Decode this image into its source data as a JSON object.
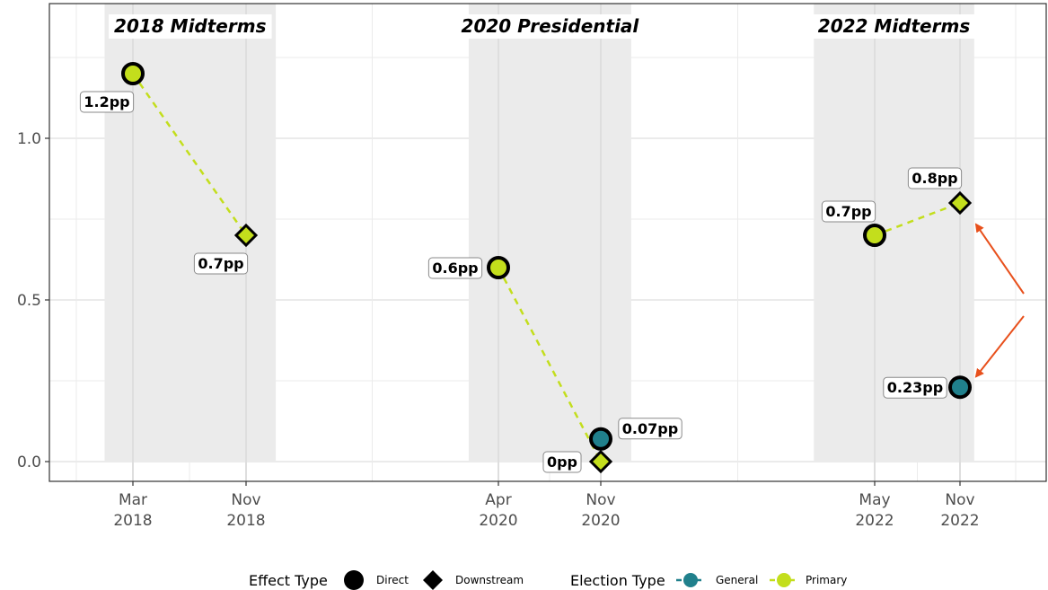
{
  "chart_data": {
    "type": "scatter",
    "title": "",
    "xlabel": "",
    "ylabel": "",
    "ylim": [
      -0.06,
      1.41
    ],
    "grid": true,
    "y_ticks": [
      {
        "value": 0.0,
        "label": "0.0"
      },
      {
        "value": 0.5,
        "label": "0.5"
      },
      {
        "value": 1.0,
        "label": "1.0"
      }
    ],
    "x_ticks": [
      {
        "date": "2018-03",
        "label_line1": "Mar",
        "label_line2": "2018"
      },
      {
        "date": "2018-11",
        "label_line1": "Nov",
        "label_line2": "2018"
      },
      {
        "date": "2020-04",
        "label_line1": "Apr",
        "label_line2": "2020"
      },
      {
        "date": "2020-11",
        "label_line1": "Nov",
        "label_line2": "2020"
      },
      {
        "date": "2022-05",
        "label_line1": "May",
        "label_line2": "2022"
      },
      {
        "date": "2022-11",
        "label_line1": "Nov",
        "label_line2": "2022"
      }
    ],
    "election_periods": [
      {
        "label": "2018 Midterms",
        "start": "2018-01",
        "end": "2019-01"
      },
      {
        "label": "2020 Presidential",
        "start": "2020-02",
        "end": "2021-01"
      },
      {
        "label": "2022 Midterms",
        "start": "2022-01",
        "end": "2022-12"
      }
    ],
    "points": [
      {
        "date": "2018-03",
        "value": 1.2,
        "effect_type": "Direct",
        "election_type": "Primary",
        "label": "1.2pp",
        "label_side": "below-left"
      },
      {
        "date": "2018-11",
        "value": 0.7,
        "effect_type": "Downstream",
        "election_type": "Primary",
        "label": "0.7pp",
        "label_side": "below-left"
      },
      {
        "date": "2020-04",
        "value": 0.6,
        "effect_type": "Direct",
        "election_type": "Primary",
        "label": "0.6pp",
        "label_side": "left"
      },
      {
        "date": "2020-11",
        "value": 0.07,
        "effect_type": "Direct",
        "election_type": "General",
        "label": "0.07pp",
        "label_side": "upper-right"
      },
      {
        "date": "2020-11",
        "value": 0.0,
        "effect_type": "Downstream",
        "election_type": "Primary",
        "label": "0pp",
        "label_side": "left"
      },
      {
        "date": "2022-05",
        "value": 0.7,
        "effect_type": "Direct",
        "election_type": "Primary",
        "label": "0.7pp",
        "label_side": "upper-left"
      },
      {
        "date": "2022-11",
        "value": 0.8,
        "effect_type": "Downstream",
        "election_type": "Primary",
        "label": "0.8pp",
        "label_side": "upper-left"
      },
      {
        "date": "2022-11",
        "value": 0.23,
        "effect_type": "Direct",
        "election_type": "General",
        "label": "0.23pp",
        "label_side": "left"
      }
    ],
    "lines": [
      {
        "election_type": "Primary",
        "from": {
          "date": "2018-03",
          "value": 1.2
        },
        "to": {
          "date": "2018-11",
          "value": 0.7
        }
      },
      {
        "election_type": "Primary",
        "from": {
          "date": "2020-04",
          "value": 0.6
        },
        "to": {
          "date": "2020-11",
          "value": 0.0
        }
      },
      {
        "election_type": "Primary",
        "from": {
          "date": "2022-05",
          "value": 0.7
        },
        "to": {
          "date": "2022-11",
          "value": 0.8
        }
      }
    ],
    "arrows_point_to": [
      {
        "date": "2022-11",
        "value": 0.8
      },
      {
        "date": "2022-11",
        "value": 0.23
      }
    ],
    "legend": {
      "placement": "bottom",
      "effect_type": {
        "title": "Effect Type",
        "items": [
          "Direct",
          "Downstream"
        ]
      },
      "election_type": {
        "title": "Election Type",
        "items": [
          "General",
          "Primary"
        ]
      }
    },
    "colors": {
      "general": "#20808c",
      "primary": "#c3de1c",
      "arrow": "#e8501c",
      "shade": "#ebebeb",
      "grid": "#ebebeb"
    }
  }
}
